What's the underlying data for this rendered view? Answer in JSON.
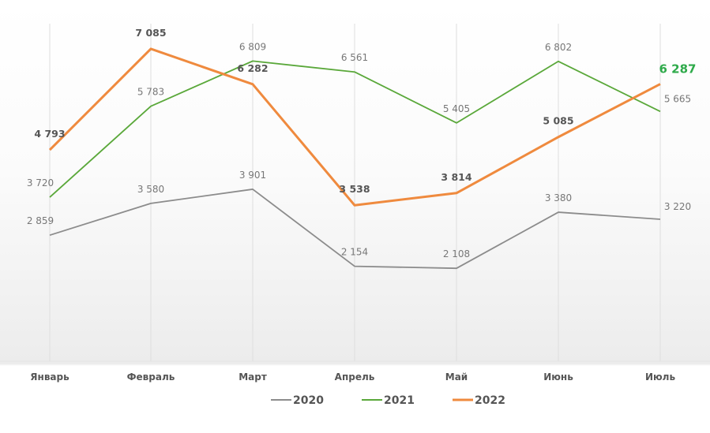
{
  "chart_data": {
    "type": "line",
    "title": "",
    "xlabel": "",
    "ylabel": "",
    "categories": [
      "Январь",
      "Февраль",
      "Март",
      "Апрель",
      "Май",
      "Июнь",
      "Июль"
    ],
    "ylim": [
      0,
      8200
    ],
    "grid": "vertical",
    "legend_position": "bottom-center",
    "series": [
      {
        "name": "2020",
        "color": "#8c8c8c",
        "values": [
          2859,
          3580,
          3901,
          2154,
          2108,
          3380,
          3220
        ],
        "labels": [
          "2 859",
          "3 580",
          "3 901",
          "2 154",
          "2 108",
          "3 380",
          "3 220"
        ]
      },
      {
        "name": "2021",
        "color": "#5aa83a",
        "values": [
          3720,
          5783,
          6809,
          6561,
          5405,
          6802,
          5665
        ],
        "labels": [
          "3 720",
          "5 783",
          "6 809",
          "6 561",
          "5 405",
          "6 802",
          "5 665"
        ]
      },
      {
        "name": "2022",
        "color": "#ef8a3e",
        "values": [
          4793,
          7085,
          6282,
          3538,
          3814,
          5085,
          6287
        ],
        "labels": [
          "4 793",
          "7 085",
          "6 282",
          "3 538",
          "3 814",
          "5 085",
          "6 287"
        ]
      }
    ],
    "highlight_color": "#2eaa4a"
  }
}
